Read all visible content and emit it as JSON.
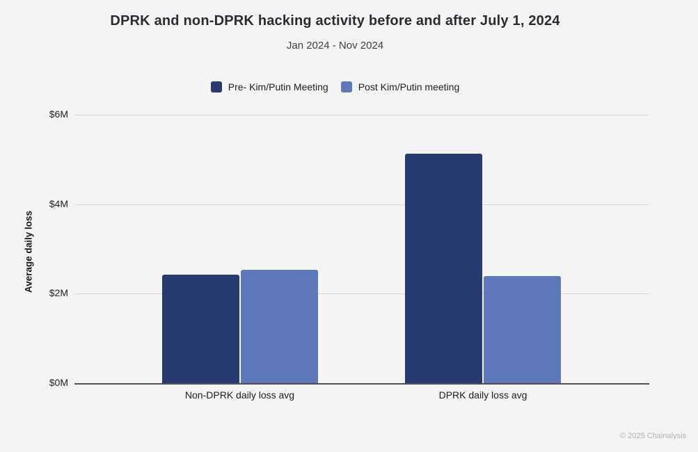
{
  "page": {
    "background": "#f4f4f5",
    "attribution": "© 2025 Chainalysis"
  },
  "chart_data": {
    "type": "bar",
    "title": "DPRK and non-DPRK hacking activity before and after July 1, 2024",
    "subtitle": "Jan 2024 - Nov 2024",
    "categories": [
      "Non-DPRK daily loss avg",
      "DPRK daily loss avg"
    ],
    "series": [
      {
        "name": "Pre- Kim/Putin Meeting",
        "color": "#283a6e",
        "values": [
          2.42,
          5.13
        ]
      },
      {
        "name": "Post Kim/Putin meeting",
        "color": "#5e78ba",
        "values": [
          2.53,
          2.4
        ]
      }
    ],
    "xlabel": "",
    "ylabel": "Average daily loss",
    "ylim": [
      0,
      6
    ],
    "yticks": [
      0,
      2,
      4,
      6
    ],
    "ytick_labels": [
      "$0M",
      "$2M",
      "$4M",
      "$6M"
    ],
    "value_unit": "USD millions per day",
    "grid": true,
    "legend_position": "top-center"
  }
}
